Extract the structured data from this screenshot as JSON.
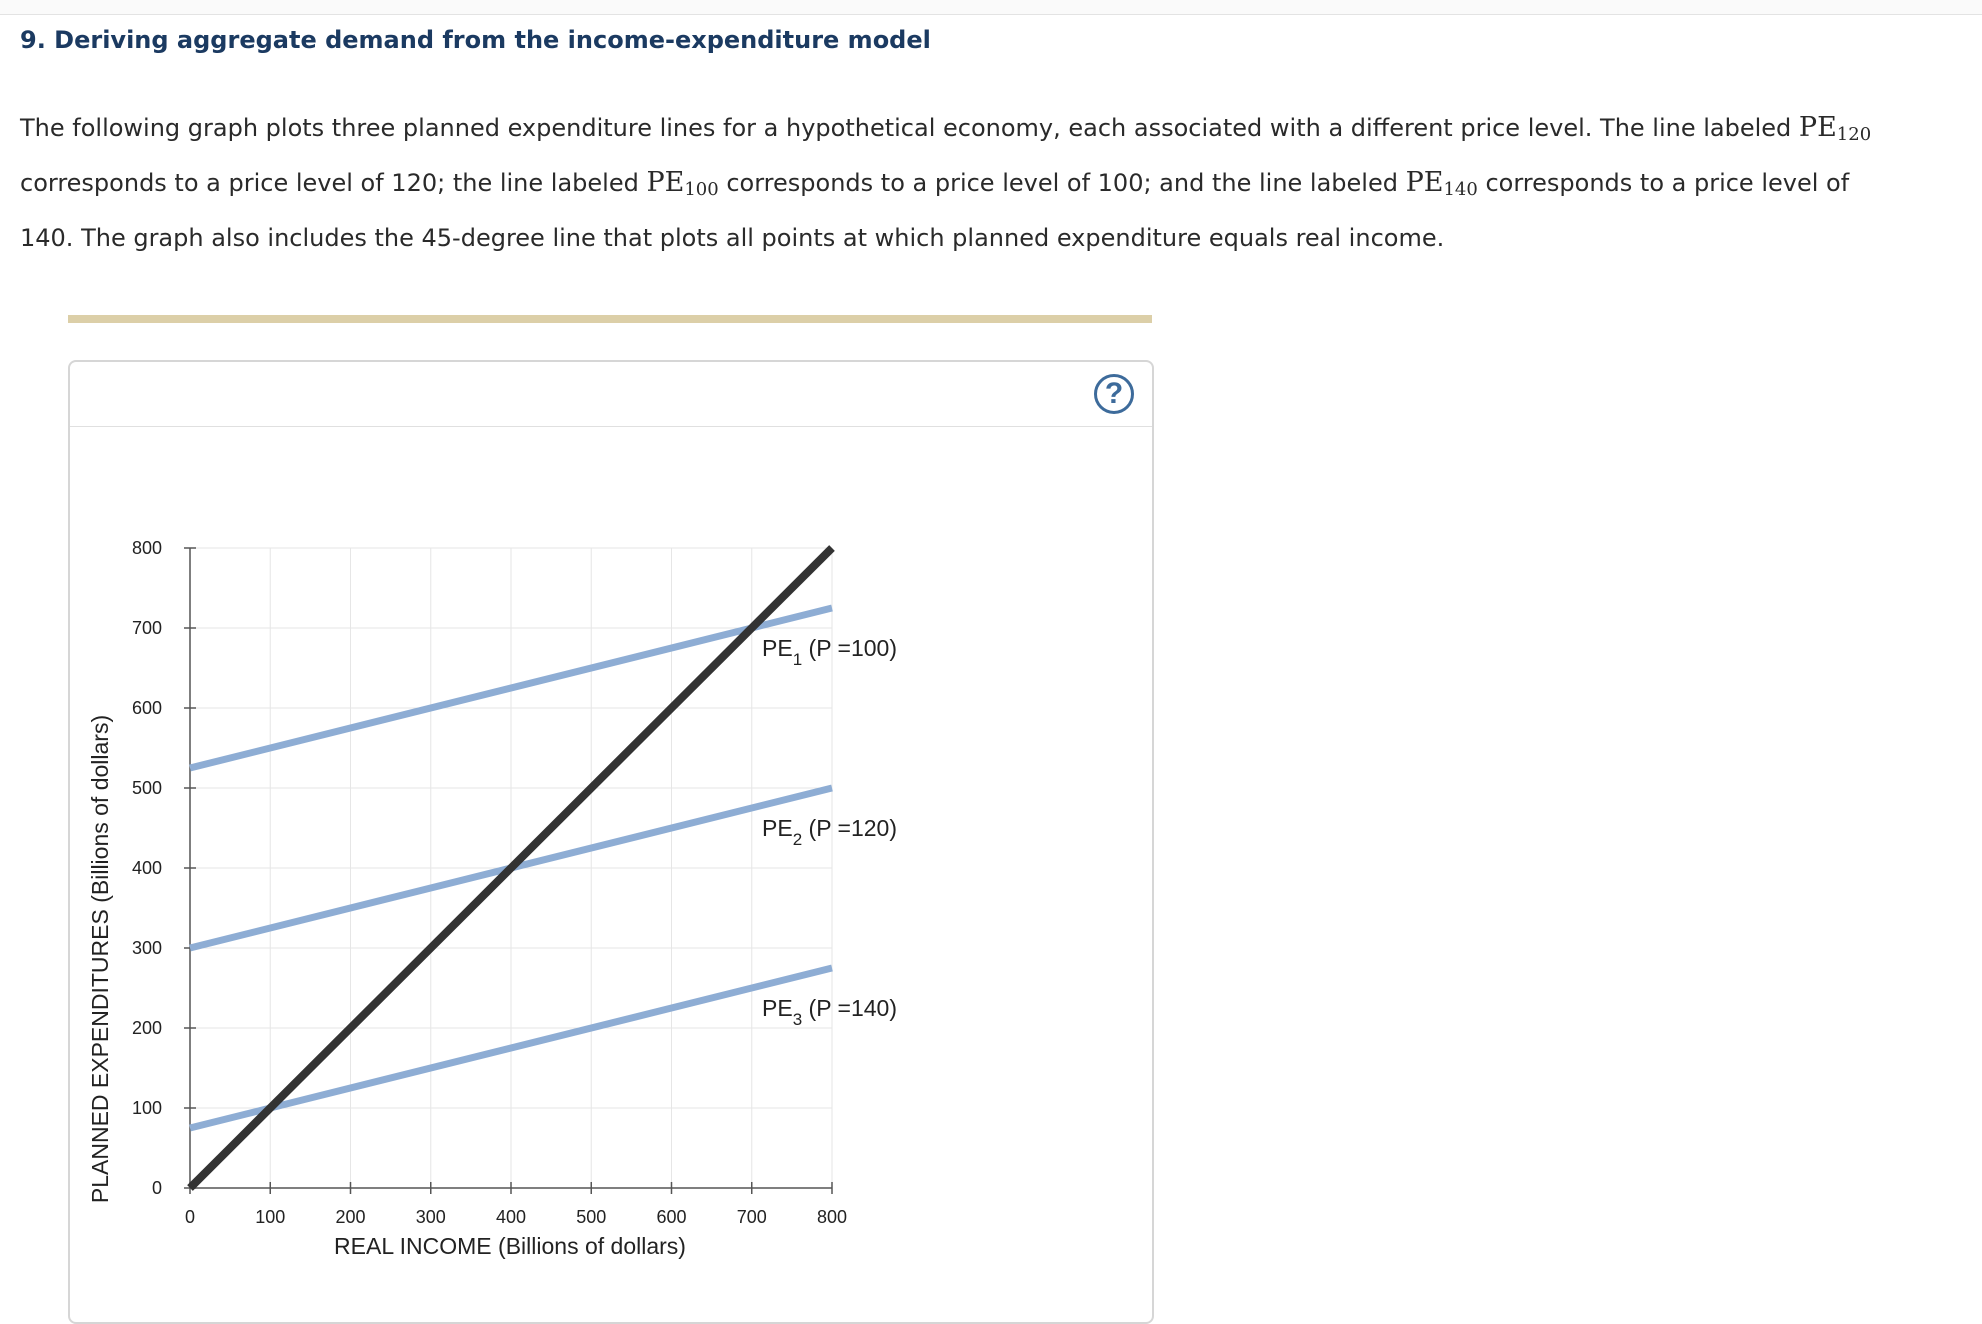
{
  "question": {
    "title": "9. Deriving aggregate demand from the income-expenditure model",
    "intro": {
      "s1": "The following graph plots three planned expenditure lines for a hypothetical economy, each associated with a different price level. The line labeled ",
      "pe_a_sub": "120",
      "s2": " corresponds to a price level of 120; the line labeled ",
      "pe_b_sub": "100",
      "s3": " corresponds to a price level of 100; and the line labeled ",
      "pe_c_sub": "140",
      "s4": " corresponds to a price level of 140. The graph also includes the 45-degree line that plots all points at which planned expenditure equals real income.",
      "pe_symbol": "PE"
    }
  },
  "help": {
    "label": "?"
  },
  "chart_data": {
    "type": "line",
    "xlabel": "REAL INCOME (Billions of dollars)",
    "ylabel": "PLANNED EXPENDITURES (Billions of dollars)",
    "xlim": [
      0,
      800
    ],
    "ylim": [
      0,
      800
    ],
    "xticks": [
      0,
      100,
      200,
      300,
      400,
      500,
      600,
      700,
      800
    ],
    "yticks": [
      0,
      100,
      200,
      300,
      400,
      500,
      600,
      700,
      800
    ],
    "grid": true,
    "series": [
      {
        "name": "45-degree line",
        "color": "#333333",
        "x": [
          0,
          800
        ],
        "y": [
          0,
          800
        ]
      },
      {
        "label_main": "PE",
        "label_sub": "1",
        "label_rest": " (P =100)",
        "color": "#8eadd4",
        "x": [
          0,
          800
        ],
        "y": [
          525,
          725
        ]
      },
      {
        "label_main": "PE",
        "label_sub": "2",
        "label_rest": " (P =120)",
        "color": "#8eadd4",
        "x": [
          0,
          800
        ],
        "y": [
          300,
          500
        ]
      },
      {
        "label_main": "PE",
        "label_sub": "3",
        "label_rest": " (P =140)",
        "color": "#8eadd4",
        "x": [
          0,
          800
        ],
        "y": [
          75,
          275
        ]
      }
    ]
  }
}
